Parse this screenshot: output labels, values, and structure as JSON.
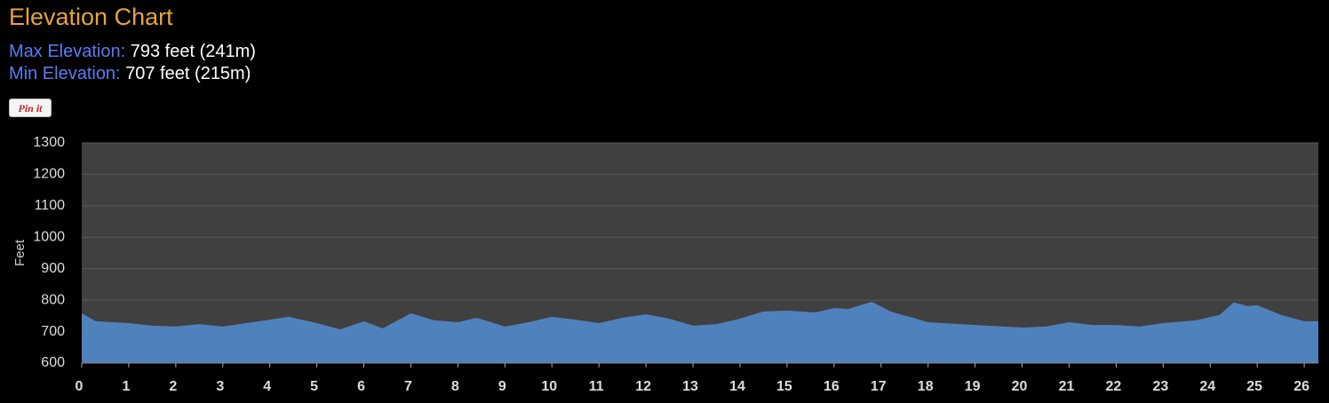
{
  "header": {
    "title": "Elevation Chart",
    "max_label": "Max Elevation:",
    "max_value": "793 feet (241m)",
    "min_label": "Min Elevation:",
    "min_value": "707 feet (215m)",
    "button": "Pin it"
  },
  "chart_data": {
    "type": "area",
    "ylabel": "Feet",
    "color": "#4f81bd",
    "grid": true,
    "x": [
      0,
      0.3,
      1,
      1.5,
      2,
      2.5,
      3,
      3.5,
      4,
      4.4,
      5,
      5.5,
      6,
      6.4,
      7,
      7.5,
      8,
      8.4,
      9,
      9.5,
      10,
      10.5,
      11,
      11.5,
      12,
      12.5,
      13,
      13.5,
      14,
      14.5,
      15,
      15.6,
      16,
      16.3,
      16.8,
      17.2,
      18,
      19,
      20,
      20.5,
      21,
      21.5,
      22,
      22.5,
      23,
      23.7,
      24.2,
      24.5,
      24.8,
      25,
      25.5,
      26,
      26.3
    ],
    "values": [
      758,
      733,
      727,
      719,
      716,
      724,
      716,
      727,
      738,
      747,
      727,
      707,
      733,
      710,
      758,
      736,
      730,
      744,
      716,
      730,
      747,
      738,
      727,
      744,
      755,
      741,
      719,
      724,
      741,
      764,
      767,
      761,
      775,
      772,
      795,
      764,
      730,
      721,
      713,
      716,
      730,
      721,
      721,
      716,
      727,
      736,
      753,
      793,
      781,
      784,
      753,
      733,
      733
    ],
    "xlim": [
      0,
      26.3
    ],
    "ylim": [
      600,
      1300
    ],
    "xticks": [
      0,
      1,
      2,
      3,
      4,
      5,
      6,
      7,
      8,
      9,
      10,
      11,
      12,
      13,
      14,
      15,
      16,
      17,
      18,
      19,
      20,
      21,
      22,
      23,
      24,
      25,
      26
    ],
    "yticks": [
      600,
      700,
      800,
      900,
      1000,
      1100,
      1200,
      1300
    ]
  }
}
